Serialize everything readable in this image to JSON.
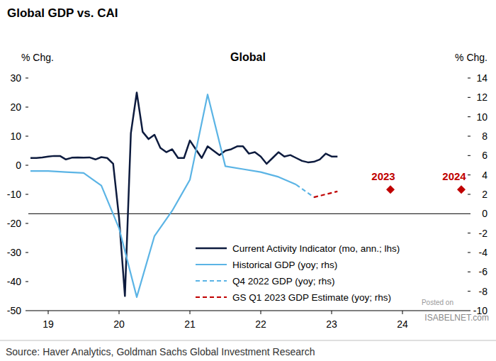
{
  "chart_data": {
    "type": "line",
    "title": "Global GDP vs. CAI",
    "subtitle": "Global",
    "y_label": "% Chg.",
    "y2_label": "% Chg.",
    "source": "Source: Haver Analytics, Goldman Sachs Global Investment Research",
    "watermark": [
      "Posted on",
      "ISABELNET.com"
    ],
    "xlim": [
      2018.72,
      2024.92
    ],
    "xticks": [
      {
        "value": 2019,
        "label": "19"
      },
      {
        "value": 2020,
        "label": "20"
      },
      {
        "value": 2021,
        "label": "21"
      },
      {
        "value": 2022,
        "label": "22"
      },
      {
        "value": 2023,
        "label": "23"
      },
      {
        "value": 2024,
        "label": "24"
      }
    ],
    "ylim": [
      -50,
      30
    ],
    "yticks": [
      -50,
      -40,
      -30,
      -20,
      -10,
      0,
      10,
      20,
      30
    ],
    "y2lim": [
      -10,
      14
    ],
    "y2ticks": [
      -10,
      -8,
      -6,
      -4,
      -2,
      0,
      2,
      4,
      6,
      8,
      10,
      12,
      14
    ],
    "grid": false,
    "legend": "bottom-right",
    "series": [
      {
        "name": "Current Activity Indicator (mo, ann.; lhs)",
        "color": "#0d1b3e",
        "line_style": "solid",
        "axis": "y",
        "x": [
          2018.75,
          2018.833,
          2018.917,
          2019,
          2019.083,
          2019.167,
          2019.25,
          2019.333,
          2019.417,
          2019.5,
          2019.583,
          2019.667,
          2019.75,
          2019.833,
          2019.917,
          2020,
          2020.083,
          2020.167,
          2020.25,
          2020.333,
          2020.417,
          2020.5,
          2020.583,
          2020.667,
          2020.75,
          2020.833,
          2020.917,
          2021,
          2021.083,
          2021.167,
          2021.25,
          2021.333,
          2021.417,
          2021.5,
          2021.583,
          2021.667,
          2021.75,
          2021.833,
          2021.917,
          2022,
          2022.083,
          2022.167,
          2022.25,
          2022.333,
          2022.417,
          2022.5,
          2022.583,
          2022.667,
          2022.75,
          2022.833,
          2022.917,
          2023,
          2023.083
        ],
        "values": [
          2.5,
          2.5,
          2.7,
          3,
          3.2,
          3.2,
          2,
          2.6,
          2.7,
          2.6,
          2.7,
          2,
          2.8,
          2.5,
          0.5,
          -18,
          -45,
          11,
          25,
          11.5,
          9,
          10.5,
          6,
          4.5,
          5.5,
          2.5,
          2.5,
          8.5,
          5.5,
          2.5,
          6.5,
          5,
          3.5,
          5,
          5.5,
          6.5,
          6.5,
          4,
          4.5,
          3,
          0.5,
          2.5,
          4.5,
          3,
          3.5,
          2.5,
          1.5,
          1,
          1.2,
          2,
          4,
          3,
          3
        ]
      },
      {
        "name": "Historical GDP (yoy; rhs)",
        "color": "#5bb4e5",
        "line_style": "solid",
        "axis": "y2",
        "x": [
          2018.75,
          2019,
          2019.25,
          2019.5,
          2019.75,
          2020,
          2020.25,
          2020.5,
          2020.75,
          2021,
          2021.25,
          2021.5,
          2021.75,
          2022,
          2022.25,
          2022.5
        ],
        "values": [
          4.4,
          4.4,
          4.3,
          4.2,
          2.9,
          -1.5,
          -8.6,
          -2.3,
          0.3,
          3.5,
          12.3,
          4.9,
          4.6,
          4.3,
          3.8,
          3.0
        ]
      },
      {
        "name": "Q4 2022 GDP (yoy; rhs)",
        "color": "#5bb4e5",
        "line_style": "dashed",
        "axis": "y2",
        "x": [
          2022.5,
          2022.75
        ],
        "values": [
          3.0,
          1.7
        ]
      },
      {
        "name": "GS Q1 2023 GDP Estimate (yoy; rhs)",
        "color": "#c00000",
        "line_style": "dashed",
        "axis": "y2",
        "x": [
          2022.75,
          2022.917,
          2023.083
        ],
        "values": [
          1.7,
          2.0,
          2.3
        ]
      }
    ],
    "forecasts": {
      "labels": [
        "2023",
        "2024"
      ],
      "x": [
        2023.83,
        2024.83
      ],
      "values": [
        2.5,
        2.5
      ],
      "color": "#c00000",
      "marker": "diamond",
      "axis": "y2"
    }
  }
}
